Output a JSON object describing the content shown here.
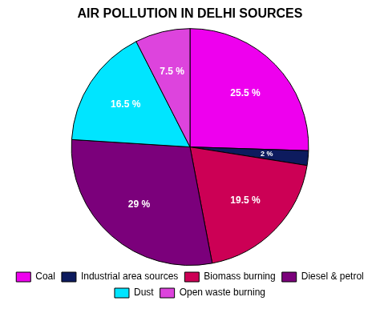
{
  "chart_data": {
    "type": "pie",
    "title": "AIR POLLUTION IN DELHI SOURCES",
    "categories": [
      "Coal",
      "Industrial area sources",
      "Biomass burning",
      "Diesel & petrol",
      "Dust",
      "Open waste burning"
    ],
    "values": [
      25.5,
      2.0,
      19.5,
      29.0,
      16.5,
      7.5
    ],
    "value_labels": [
      "25.5 %",
      "2 %",
      "19.5 %",
      "29 %",
      "16.5 %",
      "7.5 %"
    ],
    "colors": [
      "#ee00ee",
      "#0d1b5e",
      "#cc0055",
      "#7b007b",
      "#00e5ff",
      "#dd44dd"
    ],
    "data_labels": true,
    "legend": "bottom"
  }
}
